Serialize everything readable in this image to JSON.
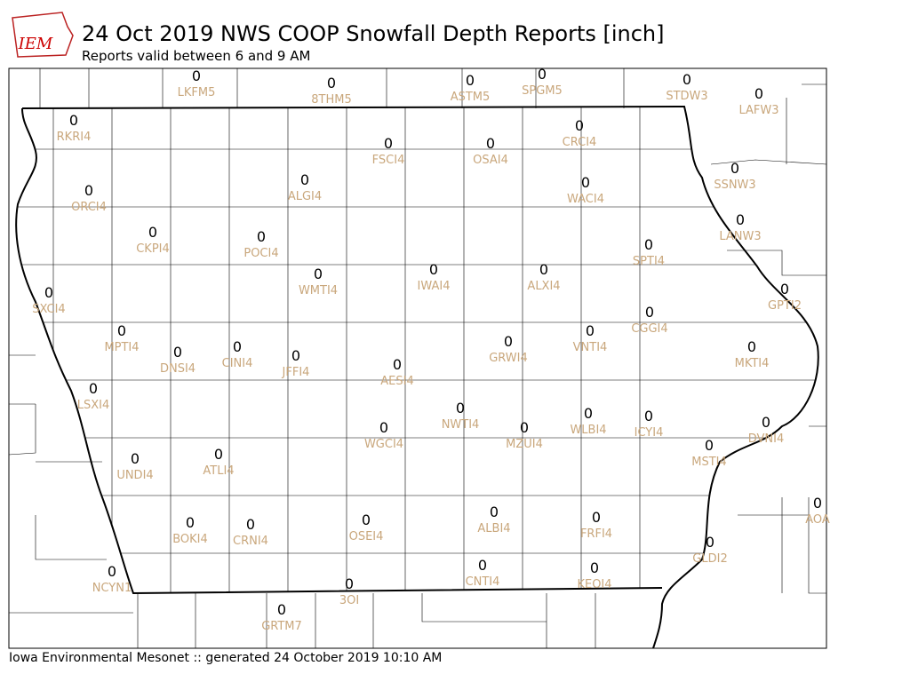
{
  "header": {
    "logo": "IEM",
    "title": "24 Oct 2019 NWS COOP Snowfall Depth Reports [inch]",
    "subtitle": "Reports valid between 6 and 9 AM"
  },
  "stations": [
    {
      "id": "LKFM5",
      "value": 0
    },
    {
      "id": "8THM5",
      "value": 0
    },
    {
      "id": "ASTM5",
      "value": 0
    },
    {
      "id": "SPGM5",
      "value": 0
    },
    {
      "id": "STDW3",
      "value": 0
    },
    {
      "id": "LAFW3",
      "value": 0
    },
    {
      "id": "RKRI4",
      "value": 0
    },
    {
      "id": "CRCI4",
      "value": 0
    },
    {
      "id": "FSCI4",
      "value": 0
    },
    {
      "id": "OSAI4",
      "value": 0
    },
    {
      "id": "SSNW3",
      "value": 0
    },
    {
      "id": "ALGI4",
      "value": 0
    },
    {
      "id": "WACI4",
      "value": 0
    },
    {
      "id": "ORCI4",
      "value": 0
    },
    {
      "id": "LANW3",
      "value": 0
    },
    {
      "id": "CKPI4",
      "value": 0
    },
    {
      "id": "POCI4",
      "value": 0
    },
    {
      "id": "SPTI4",
      "value": 0
    },
    {
      "id": "IWAI4",
      "value": 0
    },
    {
      "id": "ALXI4",
      "value": 0
    },
    {
      "id": "WMTI4",
      "value": 0
    },
    {
      "id": "SXCI4",
      "value": 0
    },
    {
      "id": "GPTI2",
      "value": 0
    },
    {
      "id": "CGGI4",
      "value": 0
    },
    {
      "id": "MPTI4",
      "value": 0
    },
    {
      "id": "VNTI4",
      "value": 0
    },
    {
      "id": "GRWI4",
      "value": 0
    },
    {
      "id": "CINI4",
      "value": 0
    },
    {
      "id": "MKTI4",
      "value": 0
    },
    {
      "id": "DNSI4",
      "value": 0
    },
    {
      "id": "JFFI4",
      "value": 0
    },
    {
      "id": "AESI4",
      "value": 0
    },
    {
      "id": "LSXI4",
      "value": 0
    },
    {
      "id": "NWTI4",
      "value": 0
    },
    {
      "id": "WLBI4",
      "value": 0
    },
    {
      "id": "ICYI4",
      "value": 0
    },
    {
      "id": "DVNI4",
      "value": 0
    },
    {
      "id": "WGCI4",
      "value": 0
    },
    {
      "id": "MZUI4",
      "value": 0
    },
    {
      "id": "MSTI4",
      "value": 0
    },
    {
      "id": "ATLI4",
      "value": 0
    },
    {
      "id": "UNDI4",
      "value": 0
    },
    {
      "id": "AOA",
      "value": 0
    },
    {
      "id": "ALBI4",
      "value": 0
    },
    {
      "id": "FRFI4",
      "value": 0
    },
    {
      "id": "OSEI4",
      "value": 0
    },
    {
      "id": "BOKI4",
      "value": 0
    },
    {
      "id": "CRNI4",
      "value": 0
    },
    {
      "id": "GLDI2",
      "value": 0
    },
    {
      "id": "CNTI4",
      "value": 0
    },
    {
      "id": "KEOI4",
      "value": 0
    },
    {
      "id": "NCYN1",
      "value": 0
    },
    {
      "id": "3OI",
      "value": 0
    },
    {
      "id": "GRTM7",
      "value": 0
    }
  ],
  "footer": "Iowa Environmental Mesonet :: generated 24 October 2019 10:10 AM"
}
